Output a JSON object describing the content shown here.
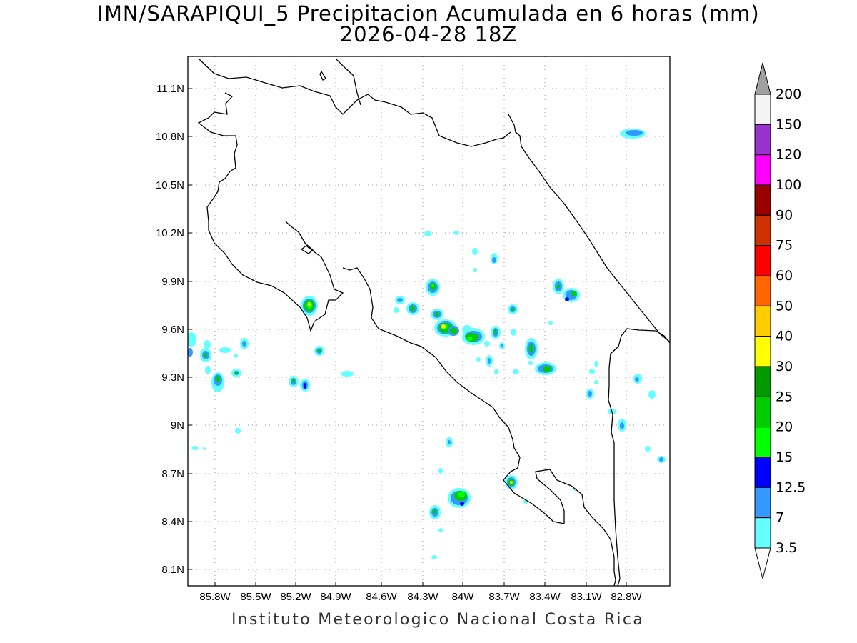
{
  "title": {
    "line1": "IMN/SARAPIQUI_5 Precipitacion Acumulada en 6 horas (mm)",
    "line2": "2026-04-28 18Z"
  },
  "footer": "Instituto Meteorologico Nacional Costa Rica",
  "map": {
    "lon_range": [
      -86.05,
      -82.55
    ],
    "lat_range": [
      8.0,
      11.3
    ],
    "x_ticks": [
      "85.8W",
      "85.5W",
      "85.2W",
      "84.9W",
      "84.6W",
      "84.3W",
      "84W",
      "83.7W",
      "83.4W",
      "83.1W",
      "82.8W"
    ],
    "y_ticks": [
      "11.1N",
      "10.8N",
      "10.5N",
      "10.2N",
      "9.9N",
      "9.6N",
      "9.3N",
      "9N",
      "8.7N",
      "8.4N",
      "8.1N"
    ],
    "grid": "dotted"
  },
  "colorbar": {
    "labels": [
      "200",
      "150",
      "120",
      "100",
      "90",
      "75",
      "60",
      "50",
      "40",
      "30",
      "25",
      "20",
      "15",
      "12.5",
      "7",
      "3.5"
    ],
    "colors": [
      "#f4f4f4",
      "#9932cc",
      "#ff00ff",
      "#990000",
      "#cc3300",
      "#ff0000",
      "#ff6600",
      "#ffcc00",
      "#ffff00",
      "#009900",
      "#00cc00",
      "#00ff00",
      "#0000ff",
      "#3399ff",
      "#66ffff"
    ],
    "over_color": "#a0a0a0",
    "under_color": "#ffffff"
  }
}
